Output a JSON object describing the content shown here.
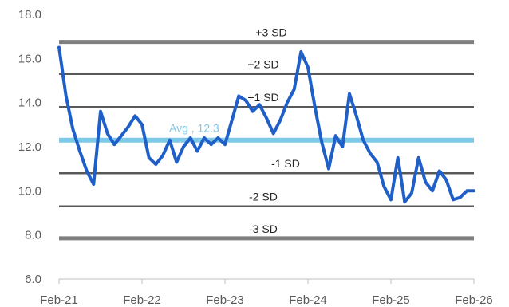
{
  "chart_data": {
    "type": "line",
    "title": "",
    "xlabel": "",
    "ylabel": "",
    "ylim": [
      6.0,
      18.0
    ],
    "y_ticks": [
      "6.0",
      "8.0",
      "10.0",
      "12.0",
      "14.0",
      "16.0",
      "18.0"
    ],
    "x_ticks": [
      "Feb-21",
      "Feb-22",
      "Feb-23",
      "Feb-24",
      "Feb-25",
      "Feb-26"
    ],
    "grid": false,
    "colors": {
      "series": "#1f5fc8",
      "average": "#7ec8e8",
      "sd_1_2": "#595959",
      "sd_3": "#7f7f7f",
      "tick_text": "#595959"
    },
    "reference_lines": [
      {
        "label": "+3 SD",
        "value": 16.75
      },
      {
        "label": "+2 SD",
        "value": 15.3
      },
      {
        "label": "+1 SD",
        "value": 13.8
      },
      {
        "label": "Avg , 12.3",
        "value": 12.3
      },
      {
        "label": "-1 SD",
        "value": 10.8
      },
      {
        "label": "-2 SD",
        "value": 9.3
      },
      {
        "label": "-3 SD",
        "value": 7.85
      }
    ],
    "series": [
      {
        "x": [
          "2021-02",
          "2021-03",
          "2021-04",
          "2021-05",
          "2021-06",
          "2021-07",
          "2021-08",
          "2021-09",
          "2021-10",
          "2021-11",
          "2021-12",
          "2022-01",
          "2022-02",
          "2022-03",
          "2022-04",
          "2022-05",
          "2022-06",
          "2022-07",
          "2022-08",
          "2022-09",
          "2022-10",
          "2022-11",
          "2022-12",
          "2023-01",
          "2023-02",
          "2023-03",
          "2023-04",
          "2023-05",
          "2023-06",
          "2023-07",
          "2023-08",
          "2023-09",
          "2023-10",
          "2023-11",
          "2023-12",
          "2024-01",
          "2024-02",
          "2024-03",
          "2024-04",
          "2024-05",
          "2024-06",
          "2024-07",
          "2024-08",
          "2024-09",
          "2024-10",
          "2024-11",
          "2024-12",
          "2025-01",
          "2025-02",
          "2025-03",
          "2025-04",
          "2025-05",
          "2025-06",
          "2025-07",
          "2025-08",
          "2025-09",
          "2025-10",
          "2025-11",
          "2025-12",
          "2026-01",
          "2026-02"
        ],
        "values": [
          16.5,
          14.3,
          12.8,
          11.8,
          10.9,
          10.3,
          13.6,
          12.6,
          12.1,
          12.5,
          12.9,
          13.4,
          13.0,
          11.5,
          11.2,
          11.6,
          12.3,
          11.3,
          12.0,
          12.4,
          11.8,
          12.4,
          12.1,
          12.4,
          12.1,
          13.2,
          14.3,
          14.1,
          13.6,
          13.9,
          13.3,
          12.6,
          13.2,
          14.0,
          14.6,
          16.3,
          15.6,
          13.8,
          12.2,
          11.0,
          12.5,
          12.0,
          14.4,
          13.4,
          12.3,
          11.7,
          11.3,
          10.2,
          9.6,
          11.5,
          9.5,
          9.9,
          11.5,
          10.4,
          10.0,
          10.9,
          10.5,
          9.6,
          9.7,
          10.0,
          10.0
        ]
      }
    ]
  }
}
